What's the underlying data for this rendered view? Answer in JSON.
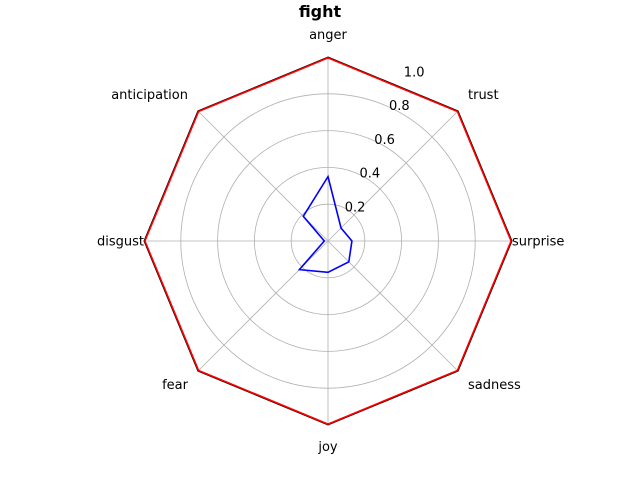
{
  "chart_data": {
    "type": "radar",
    "title": "fight",
    "categories": [
      "anger",
      "trust",
      "surprise",
      "sadness",
      "joy",
      "fear",
      "disgust",
      "anticipation"
    ],
    "rlim": [
      0,
      1.0
    ],
    "rticks": [
      0.2,
      0.4,
      0.6,
      0.8,
      1.0
    ],
    "rtick_labels": [
      "0.2",
      "0.4",
      "0.6",
      "0.8",
      "1.0"
    ],
    "grid": true,
    "series": [
      {
        "color": "#ff0000",
        "values": [
          0.995,
          0.995,
          0.995,
          0.995,
          0.995,
          0.995,
          0.995,
          0.995
        ]
      },
      {
        "color": "#0000ff",
        "values": [
          0.35,
          0.1,
          0.13,
          0.16,
          0.17,
          0.22,
          0.02,
          0.19
        ]
      }
    ],
    "frame_color": "#000000",
    "grid_color": "#b0b0b0"
  }
}
